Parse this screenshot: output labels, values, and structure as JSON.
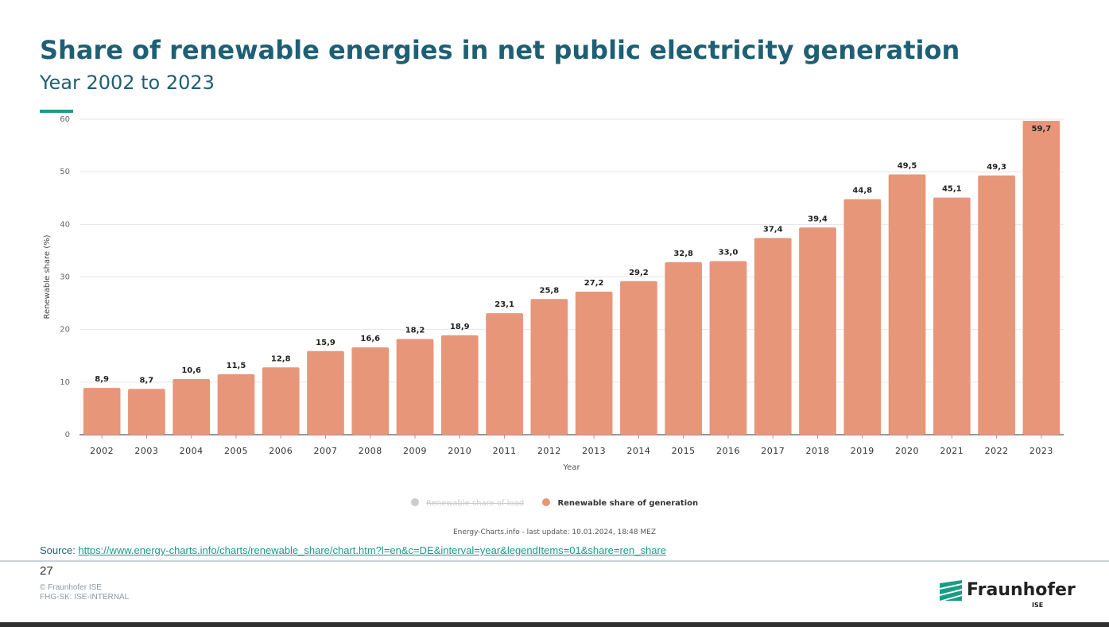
{
  "slide": {
    "title": "Share of renewable energies in net public electricity generation",
    "subtitle": "Year 2002 to 2023",
    "source_label": "Source: ",
    "source_url": "https://www.energy-charts.info/charts/renewable_share/chart.htm?l=en&c=DE&interval=year&legendItems=01&share=ren_share",
    "page_number": "27",
    "copyright": "© Fraunhofer ISE",
    "classification": "FHG-SK: ISE-INTERNAL",
    "logo_text": "Fraunhofer",
    "logo_sub": "ISE",
    "colors": {
      "title": "#1f5f74",
      "accent": "#1a9c86",
      "bar": "#e8967a"
    }
  },
  "legend": {
    "items": [
      {
        "label": "Renewable share of load",
        "color": "#cccccc",
        "enabled": false
      },
      {
        "label": "Renewable share of generation",
        "color": "#e8967a",
        "enabled": true
      }
    ]
  },
  "credit": "Energy-Charts.info - last update: 10.01.2024, 18:48 MEZ",
  "chart_data": {
    "type": "bar",
    "categories": [
      "2002",
      "2003",
      "2004",
      "2005",
      "2006",
      "2007",
      "2008",
      "2009",
      "2010",
      "2011",
      "2012",
      "2013",
      "2014",
      "2015",
      "2016",
      "2017",
      "2018",
      "2019",
      "2020",
      "2021",
      "2022",
      "2023"
    ],
    "series": [
      {
        "name": "Renewable share of generation",
        "values": [
          8.9,
          8.7,
          10.6,
          11.5,
          12.8,
          15.9,
          16.6,
          18.2,
          18.9,
          23.1,
          25.8,
          27.2,
          29.2,
          32.8,
          33.0,
          37.4,
          39.4,
          44.8,
          49.5,
          45.1,
          49.3,
          59.7
        ]
      }
    ],
    "data_labels": [
      "8,9",
      "8,7",
      "10,6",
      "11,5",
      "12,8",
      "15,9",
      "16,6",
      "18,2",
      "18,9",
      "23,1",
      "25,8",
      "27,2",
      "29,2",
      "32,8",
      "33,0",
      "37,4",
      "39,4",
      "44,8",
      "49,5",
      "45,1",
      "49,3",
      "59,7"
    ],
    "xlabel": "Year",
    "ylabel": "Renewable share (%)",
    "ylim": [
      0,
      60
    ],
    "yticks": [
      0,
      10,
      20,
      30,
      40,
      50,
      60
    ],
    "grid": true,
    "legend_position": "bottom-center"
  }
}
